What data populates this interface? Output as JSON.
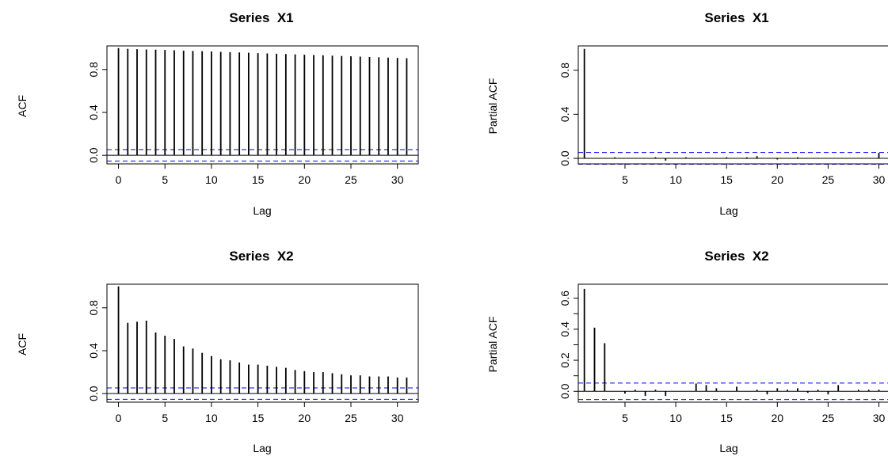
{
  "chart_data": [
    {
      "type": "bar",
      "title": "Series  X1",
      "xlabel": "Lag",
      "ylabel": "ACF",
      "xlim": [
        -1.24,
        32.24
      ],
      "ylim": [
        -0.08,
        1.02
      ],
      "x_ticks": [
        "0",
        "5",
        "10",
        "15",
        "20",
        "25",
        "30"
      ],
      "y_ticks": [
        "0.0",
        "0.4",
        "0.8"
      ],
      "confidence_bound": 0.053,
      "x": [
        0,
        1,
        2,
        3,
        4,
        5,
        6,
        7,
        8,
        9,
        10,
        11,
        12,
        13,
        14,
        15,
        16,
        17,
        18,
        19,
        20,
        21,
        22,
        23,
        24,
        25,
        26,
        27,
        28,
        29,
        30,
        31
      ],
      "values": [
        1.0,
        0.993,
        0.99,
        0.987,
        0.985,
        0.982,
        0.979,
        0.976,
        0.973,
        0.971,
        0.968,
        0.965,
        0.962,
        0.959,
        0.956,
        0.953,
        0.95,
        0.947,
        0.944,
        0.941,
        0.938,
        0.935,
        0.932,
        0.929,
        0.926,
        0.923,
        0.92,
        0.917,
        0.914,
        0.911,
        0.908,
        0.905
      ],
      "colors": {
        "bound": "#0000ff",
        "zero_line": "#000000",
        "bars": "#000000"
      }
    },
    {
      "type": "bar",
      "title": "Series  X1",
      "xlabel": "Lag",
      "ylabel": "Partial ACF",
      "xlim": [
        0.4,
        31.6
      ],
      "ylim": [
        -0.05,
        1.02
      ],
      "x_ticks": [
        "5",
        "10",
        "15",
        "20",
        "25",
        "30"
      ],
      "y_ticks": [
        "0.0",
        "0.4",
        "0.8"
      ],
      "confidence_bound": 0.053,
      "x": [
        1,
        2,
        3,
        4,
        5,
        6,
        7,
        8,
        9,
        10,
        11,
        12,
        13,
        14,
        15,
        16,
        17,
        18,
        19,
        20,
        21,
        22,
        23,
        24,
        25,
        26,
        27,
        28,
        29,
        30,
        31
      ],
      "values": [
        0.993,
        0.0,
        0.0,
        0.01,
        0.0,
        0.0,
        0.0,
        0.01,
        -0.02,
        0.0,
        0.01,
        0.0,
        0.0,
        0.0,
        0.01,
        0.0,
        0.01,
        0.02,
        0.0,
        -0.01,
        0.0,
        0.01,
        0.0,
        0.0,
        0.0,
        0.0,
        0.0,
        0.0,
        0.0,
        0.05,
        -0.03
      ],
      "colors": {
        "bound": "#0000ff",
        "zero_line": "#000000",
        "bars": "#000000"
      }
    },
    {
      "type": "bar",
      "title": "Series  X2",
      "xlabel": "Lag",
      "ylabel": "ACF",
      "xlim": [
        -1.24,
        32.24
      ],
      "ylim": [
        -0.08,
        1.02
      ],
      "x_ticks": [
        "0",
        "5",
        "10",
        "15",
        "20",
        "25",
        "30"
      ],
      "y_ticks": [
        "0.0",
        "0.4",
        "0.8"
      ],
      "confidence_bound": 0.053,
      "x": [
        0,
        1,
        2,
        3,
        4,
        5,
        6,
        7,
        8,
        9,
        10,
        11,
        12,
        13,
        14,
        15,
        16,
        17,
        18,
        19,
        20,
        21,
        22,
        23,
        24,
        25,
        26,
        27,
        28,
        29,
        30,
        31
      ],
      "values": [
        1.0,
        0.66,
        0.67,
        0.68,
        0.57,
        0.54,
        0.51,
        0.44,
        0.42,
        0.38,
        0.35,
        0.32,
        0.31,
        0.29,
        0.27,
        0.27,
        0.26,
        0.25,
        0.24,
        0.22,
        0.21,
        0.2,
        0.2,
        0.19,
        0.18,
        0.17,
        0.17,
        0.16,
        0.16,
        0.16,
        0.15,
        0.15
      ],
      "colors": {
        "bound": "#0000ff",
        "zero_line": "#000000",
        "bars": "#000000"
      }
    },
    {
      "type": "bar",
      "title": "Series  X2",
      "xlabel": "Lag",
      "ylabel": "Partial ACF",
      "xlim": [
        0.4,
        31.6
      ],
      "ylim": [
        -0.07,
        0.69
      ],
      "x_ticks": [
        "5",
        "10",
        "15",
        "20",
        "25",
        "30"
      ],
      "y_ticks": [
        "0.0",
        "0.1",
        "0.2",
        "0.3",
        "0.4",
        "0.5",
        "0.6"
      ],
      "y_tick_labels_shown": [
        "0.0",
        "0.2",
        "0.4",
        "0.6"
      ],
      "confidence_bound": 0.053,
      "x": [
        1,
        2,
        3,
        4,
        5,
        6,
        7,
        8,
        9,
        10,
        11,
        12,
        13,
        14,
        15,
        16,
        17,
        18,
        19,
        20,
        21,
        22,
        23,
        24,
        25,
        26,
        27,
        28,
        29,
        30,
        31
      ],
      "values": [
        0.66,
        0.41,
        0.31,
        0.0,
        -0.015,
        0.01,
        -0.03,
        0.01,
        -0.03,
        0.0,
        0.0,
        0.05,
        0.04,
        0.02,
        0.0,
        0.03,
        0.0,
        0.01,
        -0.02,
        0.02,
        0.01,
        0.02,
        -0.01,
        0.01,
        -0.02,
        0.04,
        0.0,
        0.01,
        0.01,
        0.01,
        0.01
      ],
      "colors": {
        "bound": "#0000ff",
        "zero_line": "#000000",
        "bars": "#000000"
      }
    }
  ]
}
